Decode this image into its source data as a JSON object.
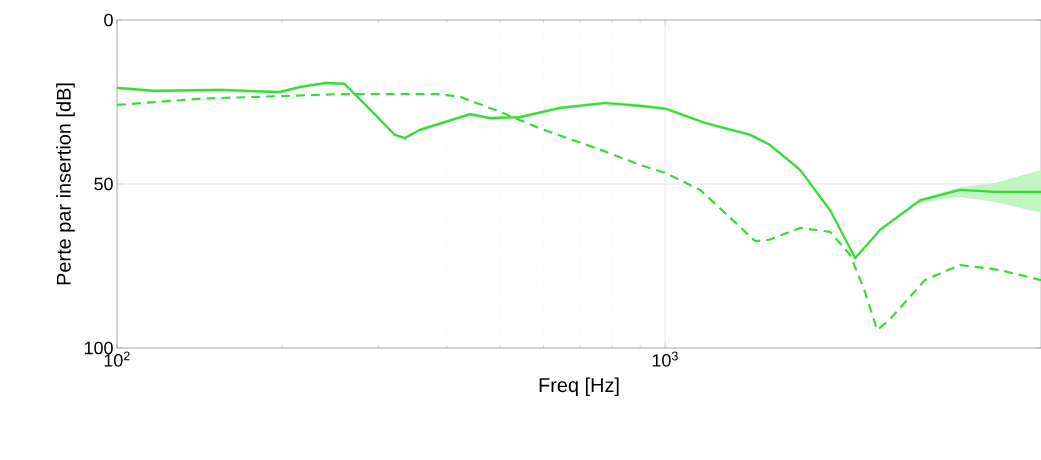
{
  "chart_data": {
    "type": "line",
    "xlabel": "Freq [Hz]",
    "ylabel": "Perte par insertion [dB]",
    "log": "x",
    "grid": true,
    "xlim": [
      100,
      4850
    ],
    "ylim": [
      100,
      0
    ],
    "xticks": [
      {
        "value": 100,
        "label": "10$^{2}$"
      },
      {
        "value": 1000,
        "label": "10$^{3}$"
      }
    ],
    "yticks": [
      0,
      50,
      100
    ],
    "series": [
      {
        "color": "#33dd33",
        "line_style": "solid",
        "x": [
          100,
          117,
          154,
          198,
          216,
          240,
          260,
          290,
          321,
          335,
          357,
          441,
          479,
          543,
          644,
          777,
          900,
          1000,
          1183,
          1429,
          1550,
          1763,
          2000,
          2222,
          2466,
          2917,
          3450,
          4000,
          4850
        ],
        "values": [
          20.7,
          21.6,
          21.3,
          22,
          20.4,
          19.2,
          19.5,
          27.4,
          35,
          36,
          33.5,
          28.7,
          29.9,
          29.6,
          26.8,
          25.3,
          26.2,
          27,
          31.4,
          35,
          38,
          45.7,
          58,
          72.6,
          64,
          55,
          51.8,
          52.4,
          52.4
        ],
        "lower": [
          20.2,
          21.1,
          20.8,
          21.5,
          19.9,
          18.7,
          19,
          26.9,
          34.5,
          35.5,
          33,
          28.2,
          29.4,
          29.1,
          26.3,
          24.8,
          25.7,
          26.5,
          30.9,
          34.5,
          37.5,
          45.2,
          57.5,
          72.1,
          63.5,
          54.5,
          51,
          49.7,
          45.7
        ],
        "upper": [
          21.2,
          22.1,
          21.8,
          22.5,
          20.9,
          19.7,
          20,
          27.9,
          35.5,
          36.5,
          34,
          29.2,
          30.4,
          30.1,
          27.3,
          25.8,
          26.7,
          27.5,
          31.9,
          35.5,
          38.5,
          46.2,
          58.5,
          73.1,
          64.5,
          55.5,
          54,
          55.5,
          58.8
        ]
      },
      {
        "color": "#33dd33",
        "line_style": "dashed",
        "x": [
          100,
          142,
          198,
          255,
          388,
          423,
          500,
          590,
          763,
          900,
          1000,
          1158,
          1316,
          1460,
          1550,
          1763,
          2000,
          2175,
          2309,
          2436,
          2563,
          2978,
          3450,
          4072,
          4850
        ],
        "values": [
          25.9,
          24,
          23.2,
          22.6,
          22.6,
          23.5,
          28,
          33,
          39.6,
          44.2,
          46.6,
          51.8,
          60.4,
          67.4,
          67,
          63.4,
          64.6,
          71.6,
          82.3,
          94.5,
          91.5,
          79.3,
          74.7,
          76.2,
          79.3
        ]
      }
    ]
  }
}
